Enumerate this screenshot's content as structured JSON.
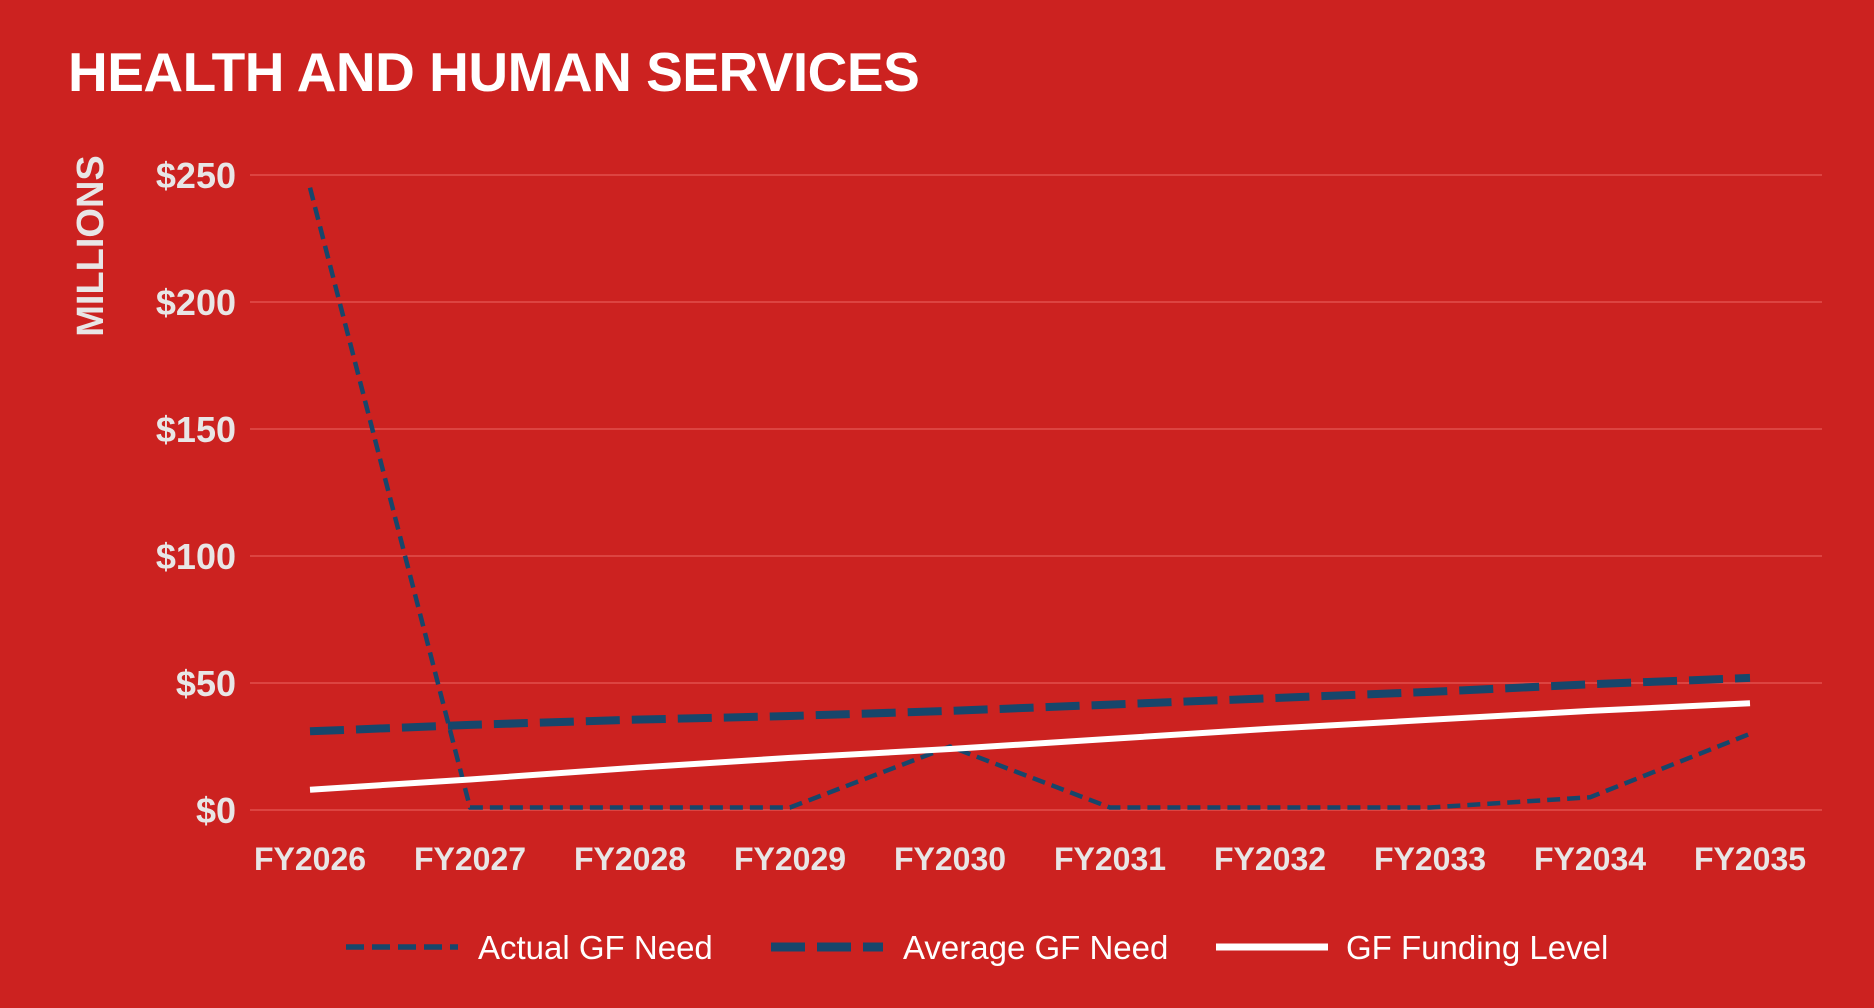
{
  "colors": {
    "background": "#cc2220",
    "gridline": "#e2504c",
    "actual_need": "#17466b",
    "average_need": "#17466b",
    "funding_level": "#ffffff",
    "axis_text": "#e8e6e6"
  },
  "chart_data": {
    "type": "line",
    "title": "HEALTH AND HUMAN SERVICES",
    "ylabel": "MILLIONS",
    "xlabel": "",
    "ylim": [
      0,
      250
    ],
    "yticks": [
      0,
      50,
      100,
      150,
      200,
      250
    ],
    "ytick_labels": [
      "$0",
      "$50",
      "$100",
      "$150",
      "$200",
      "$250"
    ],
    "grid": true,
    "legend_position": "bottom",
    "categories": [
      "FY2026",
      "FY2027",
      "FY2028",
      "FY2029",
      "FY2030",
      "FY2031",
      "FY2032",
      "FY2033",
      "FY2034",
      "FY2035"
    ],
    "series": [
      {
        "name": "Actual GF Need",
        "style": "dashed",
        "color": "#17466b",
        "values": [
          245,
          1,
          1,
          1,
          25,
          1,
          1,
          1,
          5,
          30
        ]
      },
      {
        "name": "Average GF Need",
        "style": "long-dashed",
        "color": "#17466b",
        "values": [
          31,
          33.5,
          35.5,
          37,
          39,
          41.5,
          44,
          46.5,
          49.5,
          52
        ]
      },
      {
        "name": "GF Funding Level",
        "style": "solid",
        "color": "#ffffff",
        "values": [
          8,
          12,
          16.5,
          20.5,
          24,
          28,
          32,
          35.5,
          39,
          42
        ]
      }
    ]
  }
}
